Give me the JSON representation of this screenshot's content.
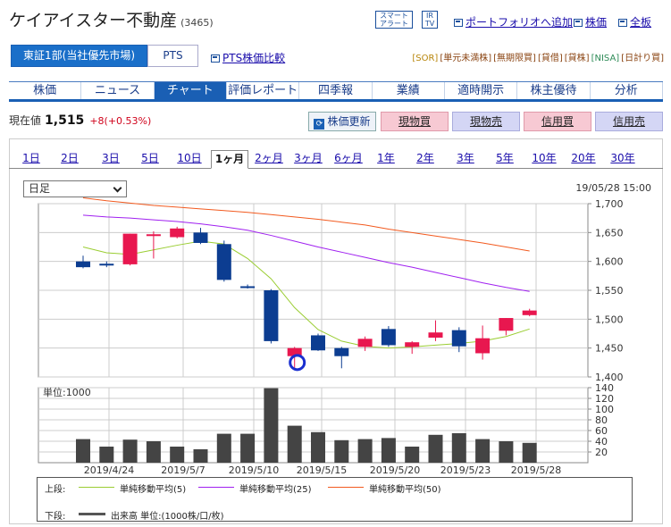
{
  "header": {
    "company": "ケイアイスター不動産",
    "code": "(3465)",
    "smart_alert": "スマート\nアラート",
    "ir_tv": "IR\nTV",
    "portfolio": "ポートフォリオへ追加",
    "kabuka": "株価",
    "zenban": "全板"
  },
  "market": {
    "tab1": "東証1部(当社優先市場)",
    "tab2": "PTS",
    "pts_compare": "PTS株価比較"
  },
  "tags": [
    "[SOR]",
    "[単元未満株]",
    "[無期限買]",
    "[貸借]",
    "[貸株]",
    "[NISA]",
    "[日計り買]"
  ],
  "nav": [
    "株価",
    "ニュース",
    "チャート",
    "評価レポート",
    "四季報",
    "業績",
    "適時開示",
    "株主優待",
    "分析"
  ],
  "price": {
    "label": "現在値",
    "value": "1,515",
    "change": "+8",
    "pct": "(+0.53%)"
  },
  "actions": {
    "update": "株価更新",
    "genbutsu_buy": "現物買",
    "genbutsu_sell": "現物売",
    "shinyo_buy": "信用買",
    "shinyo_sell": "信用売"
  },
  "periods": [
    "1日",
    "2日",
    "3日",
    "5日",
    "10日",
    "1ヶ月",
    "2ヶ月",
    "3ヶ月",
    "6ヶ月",
    "1年",
    "2年",
    "3年",
    "5年",
    "10年",
    "20年",
    "30年"
  ],
  "select": {
    "value": "日足"
  },
  "datetime": "19/05/28 15:00",
  "vol_unit": "単位:1000",
  "legend": {
    "upper": "上段:",
    "lower": "下段:",
    "ma5": "単純移動平均(5)",
    "ma25": "単純移動平均(25)",
    "ma50": "単純移動平均(50)",
    "volume": "出来高 単位:(1000株/口/枚)"
  },
  "colors": {
    "up": "#e8174f",
    "down": "#0c3d91",
    "ma5": "#9acd32",
    "ma25": "#a020f0",
    "ma50": "#f25a1f",
    "accent": "#1a5fb4"
  },
  "chart_data": {
    "type": "candlestick",
    "ylim": [
      1400,
      1700
    ],
    "yticks": [
      1400,
      1450,
      1500,
      1550,
      1600,
      1650,
      1700
    ],
    "vol_ylim": [
      0,
      140
    ],
    "vol_ticks": [
      20,
      40,
      60,
      80,
      100,
      120,
      140
    ],
    "xticks": [
      "2019/4/24",
      "2019/5/7",
      "2019/5/10",
      "2019/5/15",
      "2019/5/20",
      "2019/5/23",
      "2019/5/28"
    ],
    "candles": [
      {
        "o": 1600,
        "h": 1610,
        "l": 1588,
        "c": 1590,
        "v": 44
      },
      {
        "o": 1596,
        "h": 1600,
        "l": 1590,
        "c": 1594,
        "v": 30
      },
      {
        "o": 1595,
        "h": 1648,
        "l": 1593,
        "c": 1648,
        "v": 43
      },
      {
        "o": 1647,
        "h": 1652,
        "l": 1605,
        "c": 1647,
        "v": 40
      },
      {
        "o": 1642,
        "h": 1660,
        "l": 1640,
        "c": 1657,
        "v": 30
      },
      {
        "o": 1650,
        "h": 1658,
        "l": 1630,
        "c": 1632,
        "v": 25
      },
      {
        "o": 1630,
        "h": 1636,
        "l": 1565,
        "c": 1568,
        "v": 54
      },
      {
        "o": 1557,
        "h": 1560,
        "l": 1553,
        "c": 1555,
        "v": 54
      },
      {
        "o": 1550,
        "h": 1552,
        "l": 1458,
        "c": 1462,
        "v": 139
      },
      {
        "o": 1436,
        "h": 1452,
        "l": 1412,
        "c": 1450,
        "v": 69
      },
      {
        "o": 1472,
        "h": 1475,
        "l": 1445,
        "c": 1446,
        "v": 57
      },
      {
        "o": 1450,
        "h": 1452,
        "l": 1415,
        "c": 1436,
        "v": 42
      },
      {
        "o": 1452,
        "h": 1470,
        "l": 1445,
        "c": 1466,
        "v": 44
      },
      {
        "o": 1483,
        "h": 1488,
        "l": 1452,
        "c": 1455,
        "v": 46
      },
      {
        "o": 1452,
        "h": 1462,
        "l": 1440,
        "c": 1460,
        "v": 30
      },
      {
        "o": 1468,
        "h": 1498,
        "l": 1462,
        "c": 1477,
        "v": 52
      },
      {
        "o": 1481,
        "h": 1486,
        "l": 1443,
        "c": 1453,
        "v": 55
      },
      {
        "o": 1441,
        "h": 1489,
        "l": 1430,
        "c": 1467,
        "v": 44
      },
      {
        "o": 1480,
        "h": 1502,
        "l": 1472,
        "c": 1502,
        "v": 40
      },
      {
        "o": 1507,
        "h": 1518,
        "l": 1505,
        "c": 1515,
        "v": 37
      }
    ],
    "ma5": [
      1625,
      1615,
      1612,
      1620,
      1628,
      1635,
      1630,
      1605,
      1570,
      1520,
      1482,
      1462,
      1453,
      1450,
      1452,
      1455,
      1458,
      1462,
      1470,
      1483
    ],
    "ma25": [
      1680,
      1677,
      1675,
      1672,
      1669,
      1665,
      1660,
      1654,
      1645,
      1635,
      1625,
      1616,
      1607,
      1598,
      1590,
      1581,
      1572,
      1563,
      1555,
      1548
    ],
    "ma50": [
      1710,
      1705,
      1701,
      1697,
      1694,
      1691,
      1688,
      1685,
      1681,
      1677,
      1673,
      1668,
      1663,
      1656,
      1650,
      1644,
      1638,
      1632,
      1625,
      1618
    ]
  }
}
